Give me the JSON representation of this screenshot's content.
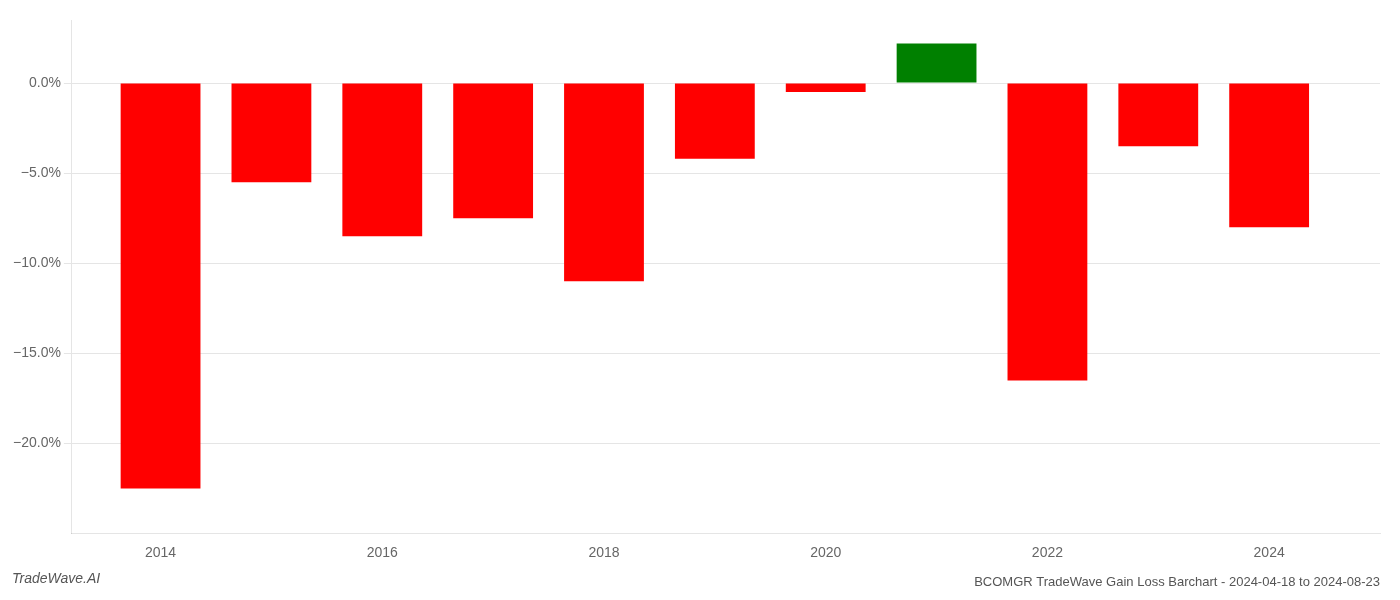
{
  "chart_data": {
    "type": "bar",
    "title": "BCOMGR TradeWave Gain Loss Barchart - 2024-04-18 to 2024-08-23",
    "annotations": [
      "TradeWave.AI"
    ],
    "x": [
      2014,
      2015,
      2016,
      2017,
      2018,
      2019,
      2020,
      2021,
      2022,
      2023,
      2024
    ],
    "values": [
      -22.5,
      -5.5,
      -8.5,
      -7.5,
      -11.0,
      -4.2,
      -0.5,
      2.2,
      -16.5,
      -3.5,
      -8.0
    ],
    "colors": [
      "#ff0000",
      "#ff0000",
      "#ff0000",
      "#ff0000",
      "#ff0000",
      "#ff0000",
      "#ff0000",
      "#008000",
      "#ff0000",
      "#ff0000",
      "#ff0000"
    ],
    "xlim": [
      2013.2,
      2025.0
    ],
    "xticks": [
      2014,
      2016,
      2018,
      2020,
      2022,
      2024
    ],
    "ylim": [
      -25,
      3.5
    ],
    "yticks": [
      {
        "value": 0.0,
        "label": "0.0%"
      },
      {
        "value": -5.0,
        "label": "−5.0%"
      },
      {
        "value": -10.0,
        "label": "−10.0%"
      },
      {
        "value": -15.0,
        "label": "−15.0%"
      },
      {
        "value": -20.0,
        "label": "−20.0%"
      }
    ],
    "grid": "y"
  }
}
